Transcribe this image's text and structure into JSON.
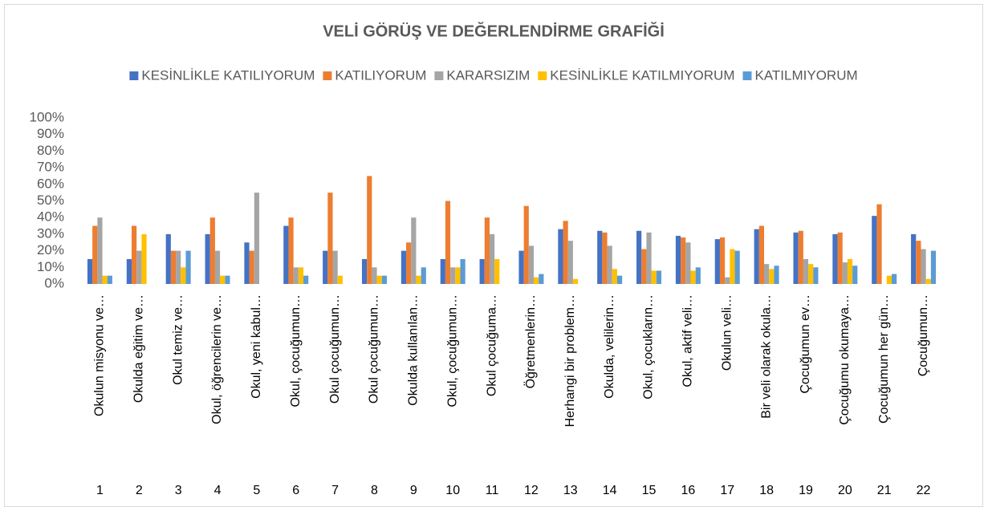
{
  "chart_data": {
    "type": "bar",
    "title": "VELİ GÖRÜŞ VE DEĞERLENDİRME GRAFİĞİ",
    "categories": [
      "Okulun misyonu ve…",
      "Okulda eğitim ve…",
      "Okul temiz ve…",
      "Okul, öğrencilerin ve…",
      "Okul, yeni kabul…",
      "Okul, çocuğumun…",
      "Okul çocuğumun…",
      "Okul çocuğumun…",
      "Okulda kullanılan…",
      "Okul, çocuğumun…",
      "Okul çocuğuma…",
      "Öğretmenlerin…",
      "Herhangi bir problem…",
      "Okulda, velilerin…",
      "Okul, çocukların…",
      "Okul, aktif veli…",
      "Okulun veli…",
      "Bir veli olarak okula…",
      "Çocuğumun ev…",
      "Çocuğumu okumaya…",
      "Çocuğumun her gün…",
      "Çocuğumun…"
    ],
    "category_numbers": [
      1,
      2,
      3,
      4,
      5,
      6,
      7,
      8,
      9,
      10,
      11,
      12,
      13,
      14,
      15,
      16,
      17,
      18,
      19,
      20,
      21,
      22
    ],
    "series": [
      {
        "name": "KESİNLİKLE KATILIYORUM",
        "color": "#4472c4",
        "values": [
          15,
          15,
          30,
          30,
          25,
          35,
          20,
          15,
          20,
          15,
          15,
          20,
          33,
          32,
          32,
          29,
          27,
          33,
          31,
          30,
          41,
          30
        ]
      },
      {
        "name": "KATILIYORUM",
        "color": "#ed7d31",
        "values": [
          35,
          35,
          20,
          40,
          20,
          40,
          55,
          65,
          25,
          50,
          40,
          47,
          38,
          31,
          21,
          28,
          28,
          35,
          32,
          31,
          48,
          26
        ]
      },
      {
        "name": "KARARSIZIM",
        "color": "#a5a5a5",
        "values": [
          40,
          20,
          20,
          20,
          55,
          10,
          20,
          10,
          40,
          10,
          30,
          23,
          26,
          23,
          31,
          25,
          4,
          12,
          15,
          13,
          0,
          21
        ]
      },
      {
        "name": "KESİNLİKLE KATILMIYORUM",
        "color": "#ffc000",
        "values": [
          5,
          30,
          10,
          5,
          0,
          10,
          5,
          5,
          5,
          10,
          15,
          4,
          3,
          9,
          8,
          8,
          21,
          9,
          12,
          15,
          5,
          3
        ]
      },
      {
        "name": "KATILMIYORUM",
        "color": "#5b9bd5",
        "values": [
          5,
          0,
          20,
          5,
          0,
          5,
          0,
          5,
          10,
          15,
          0,
          6,
          0,
          5,
          8,
          10,
          20,
          11,
          10,
          11,
          6,
          20
        ]
      }
    ],
    "ylim": [
      0,
      100
    ],
    "yticks": [
      {
        "value": 0,
        "label": "0%"
      },
      {
        "value": 10,
        "label": "10%"
      },
      {
        "value": 20,
        "label": "20%"
      },
      {
        "value": 30,
        "label": "30%"
      },
      {
        "value": 40,
        "label": "40%"
      },
      {
        "value": 50,
        "label": "50%"
      },
      {
        "value": 60,
        "label": "60%"
      },
      {
        "value": 70,
        "label": "70%"
      },
      {
        "value": 80,
        "label": "80%"
      },
      {
        "value": 90,
        "label": "90%"
      },
      {
        "value": 100,
        "label": "100%"
      }
    ],
    "grid": false,
    "legend": "top"
  }
}
